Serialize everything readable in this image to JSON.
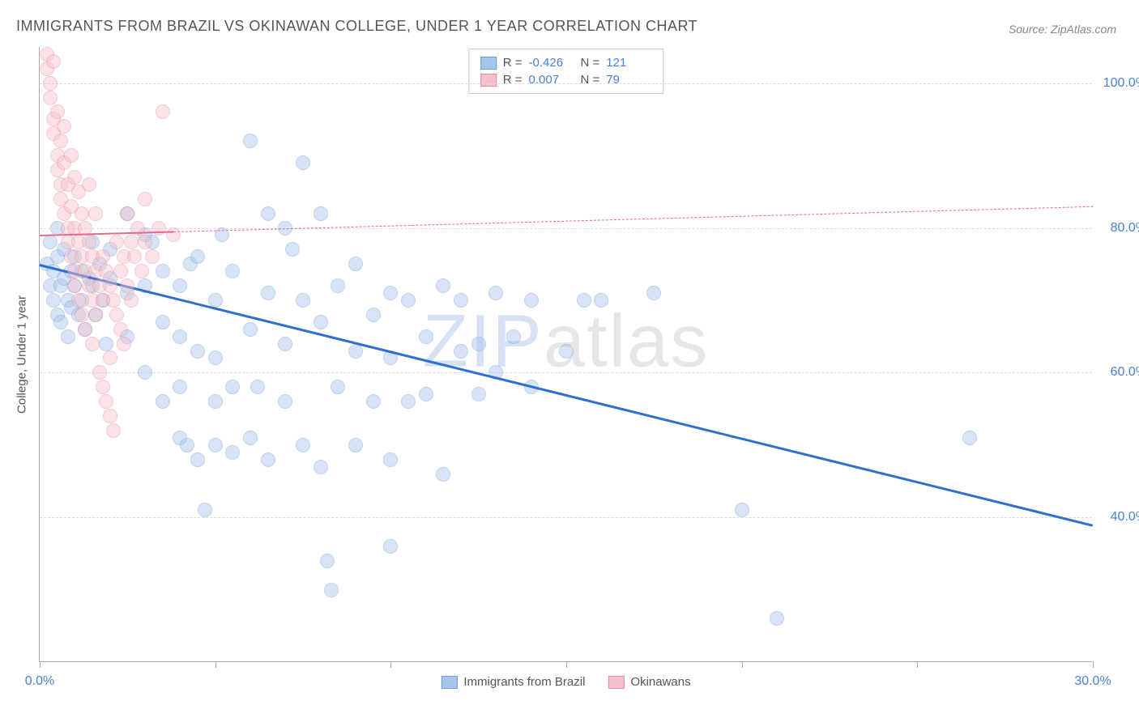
{
  "title": "IMMIGRANTS FROM BRAZIL VS OKINAWAN COLLEGE, UNDER 1 YEAR CORRELATION CHART",
  "source_label": "Source: ",
  "source_name": "ZipAtlas.com",
  "y_axis_label": "College, Under 1 year",
  "watermark": {
    "part1": "ZIP",
    "part2": "atlas"
  },
  "chart": {
    "type": "scatter",
    "background_color": "#ffffff",
    "grid_color": "#dcdcdc",
    "axis_color": "#aaaaaa",
    "xlim": [
      0,
      30
    ],
    "ylim": [
      20,
      105
    ],
    "x_ticks": [
      0,
      5,
      10,
      15,
      20,
      25,
      30
    ],
    "x_tick_labels": {
      "0": "0.0%",
      "30": "30.0%"
    },
    "y_ticks": [
      40,
      60,
      80,
      100
    ],
    "y_tick_labels": {
      "40": "40.0%",
      "60": "60.0%",
      "80": "80.0%",
      "100": "100.0%"
    },
    "marker_radius": 9,
    "marker_opacity": 0.45,
    "label_fontsize": 16,
    "title_fontsize": 18,
    "series": [
      {
        "name": "Immigrants from Brazil",
        "color_fill": "#a8c5eb",
        "color_stroke": "#6d9bd8",
        "r_value": "-0.426",
        "n_value": "121",
        "regression": {
          "x1": 0,
          "y1": 75,
          "x2": 30,
          "y2": 39,
          "color": "#2e6fd0",
          "width": 2.5,
          "dashed": false
        },
        "points": [
          [
            0.2,
            75
          ],
          [
            0.3,
            72
          ],
          [
            0.3,
            78
          ],
          [
            0.4,
            70
          ],
          [
            0.4,
            74
          ],
          [
            0.5,
            68
          ],
          [
            0.5,
            76
          ],
          [
            0.5,
            80
          ],
          [
            0.6,
            72
          ],
          [
            0.6,
            67
          ],
          [
            0.7,
            73
          ],
          [
            0.7,
            77
          ],
          [
            0.8,
            70
          ],
          [
            0.8,
            65
          ],
          [
            0.9,
            74
          ],
          [
            0.9,
            69
          ],
          [
            1.0,
            76
          ],
          [
            1.0,
            72
          ],
          [
            1.1,
            68
          ],
          [
            1.2,
            74
          ],
          [
            1.2,
            70
          ],
          [
            1.3,
            66
          ],
          [
            1.4,
            73
          ],
          [
            1.5,
            78
          ],
          [
            1.5,
            72
          ],
          [
            1.6,
            68
          ],
          [
            1.7,
            75
          ],
          [
            1.8,
            70
          ],
          [
            1.9,
            64
          ],
          [
            2.0,
            73
          ],
          [
            2.0,
            77
          ],
          [
            2.5,
            82
          ],
          [
            2.5,
            71
          ],
          [
            2.5,
            65
          ],
          [
            3.0,
            79
          ],
          [
            3.0,
            72
          ],
          [
            3.0,
            60
          ],
          [
            3.2,
            78
          ],
          [
            3.5,
            67
          ],
          [
            3.5,
            74
          ],
          [
            3.5,
            56
          ],
          [
            4.0,
            72
          ],
          [
            4.0,
            65
          ],
          [
            4.0,
            58
          ],
          [
            4.0,
            51
          ],
          [
            4.2,
            50
          ],
          [
            4.3,
            75
          ],
          [
            4.5,
            76
          ],
          [
            4.5,
            63
          ],
          [
            4.5,
            48
          ],
          [
            4.7,
            41
          ],
          [
            5.0,
            70
          ],
          [
            5.0,
            50
          ],
          [
            5.0,
            56
          ],
          [
            5.0,
            62
          ],
          [
            5.2,
            79
          ],
          [
            5.5,
            74
          ],
          [
            5.5,
            58
          ],
          [
            5.5,
            49
          ],
          [
            6.0,
            92
          ],
          [
            6.0,
            66
          ],
          [
            6.0,
            51
          ],
          [
            6.2,
            58
          ],
          [
            6.5,
            82
          ],
          [
            6.5,
            71
          ],
          [
            6.5,
            48
          ],
          [
            7.0,
            80
          ],
          [
            7.0,
            64
          ],
          [
            7.0,
            56
          ],
          [
            7.2,
            77
          ],
          [
            7.5,
            89
          ],
          [
            7.5,
            70
          ],
          [
            7.5,
            50
          ],
          [
            8.0,
            82
          ],
          [
            8.0,
            67
          ],
          [
            8.0,
            47
          ],
          [
            8.2,
            34
          ],
          [
            8.3,
            30
          ],
          [
            8.5,
            72
          ],
          [
            8.5,
            58
          ],
          [
            9.0,
            75
          ],
          [
            9.0,
            63
          ],
          [
            9.0,
            50
          ],
          [
            9.5,
            68
          ],
          [
            9.5,
            56
          ],
          [
            10.0,
            71
          ],
          [
            10.0,
            62
          ],
          [
            10.0,
            48
          ],
          [
            10.0,
            36
          ],
          [
            10.5,
            70
          ],
          [
            10.5,
            56
          ],
          [
            11.0,
            65
          ],
          [
            11.0,
            57
          ],
          [
            11.5,
            72
          ],
          [
            11.5,
            46
          ],
          [
            12.0,
            63
          ],
          [
            12.0,
            70
          ],
          [
            12.5,
            57
          ],
          [
            12.5,
            64
          ],
          [
            13.0,
            60
          ],
          [
            13.0,
            71
          ],
          [
            13.5,
            65
          ],
          [
            14.0,
            58
          ],
          [
            14.0,
            70
          ],
          [
            15.0,
            63
          ],
          [
            15.5,
            70
          ],
          [
            16.0,
            70
          ],
          [
            17.5,
            71
          ],
          [
            20.0,
            41
          ],
          [
            21.0,
            26
          ],
          [
            26.5,
            51
          ]
        ]
      },
      {
        "name": "Okinawans",
        "color_fill": "#f5bfcb",
        "color_stroke": "#e88aa0",
        "r_value": "0.007",
        "n_value": "79",
        "regression": {
          "x1": 0,
          "y1": 79,
          "x2": 30,
          "y2": 83,
          "color": "#e66b88",
          "width": 1.5,
          "dashed": true,
          "solid_until_x": 3.8
        },
        "points": [
          [
            0.2,
            104
          ],
          [
            0.2,
            102
          ],
          [
            0.3,
            100
          ],
          [
            0.3,
            98
          ],
          [
            0.4,
            95
          ],
          [
            0.4,
            93
          ],
          [
            0.4,
            103
          ],
          [
            0.5,
            90
          ],
          [
            0.5,
            88
          ],
          [
            0.5,
            96
          ],
          [
            0.6,
            86
          ],
          [
            0.6,
            92
          ],
          [
            0.6,
            84
          ],
          [
            0.7,
            82
          ],
          [
            0.7,
            89
          ],
          [
            0.7,
            94
          ],
          [
            0.8,
            80
          ],
          [
            0.8,
            86
          ],
          [
            0.8,
            78
          ],
          [
            0.9,
            76
          ],
          [
            0.9,
            83
          ],
          [
            0.9,
            90
          ],
          [
            1.0,
            74
          ],
          [
            1.0,
            80
          ],
          [
            1.0,
            87
          ],
          [
            1.0,
            72
          ],
          [
            1.1,
            78
          ],
          [
            1.1,
            85
          ],
          [
            1.1,
            70
          ],
          [
            1.2,
            76
          ],
          [
            1.2,
            82
          ],
          [
            1.2,
            68
          ],
          [
            1.3,
            74
          ],
          [
            1.3,
            80
          ],
          [
            1.3,
            66
          ],
          [
            1.4,
            72
          ],
          [
            1.4,
            78
          ],
          [
            1.4,
            86
          ],
          [
            1.5,
            70
          ],
          [
            1.5,
            76
          ],
          [
            1.5,
            64
          ],
          [
            1.6,
            74
          ],
          [
            1.6,
            68
          ],
          [
            1.6,
            82
          ],
          [
            1.7,
            72
          ],
          [
            1.7,
            60
          ],
          [
            1.8,
            76
          ],
          [
            1.8,
            70
          ],
          [
            1.8,
            58
          ],
          [
            1.9,
            74
          ],
          [
            1.9,
            56
          ],
          [
            2.0,
            72
          ],
          [
            2.0,
            62
          ],
          [
            2.0,
            54
          ],
          [
            2.1,
            70
          ],
          [
            2.1,
            52
          ],
          [
            2.2,
            68
          ],
          [
            2.2,
            78
          ],
          [
            2.3,
            66
          ],
          [
            2.3,
            74
          ],
          [
            2.4,
            76
          ],
          [
            2.4,
            64
          ],
          [
            2.5,
            72
          ],
          [
            2.5,
            82
          ],
          [
            2.6,
            70
          ],
          [
            2.6,
            78
          ],
          [
            2.7,
            76
          ],
          [
            2.8,
            80
          ],
          [
            2.9,
            74
          ],
          [
            3.0,
            78
          ],
          [
            3.0,
            84
          ],
          [
            3.2,
            76
          ],
          [
            3.4,
            80
          ],
          [
            3.5,
            96
          ],
          [
            3.8,
            79
          ]
        ]
      }
    ]
  },
  "bottom_legend": [
    {
      "label": "Immigrants from Brazil",
      "fill": "#a8c5eb",
      "stroke": "#6d9bd8"
    },
    {
      "label": "Okinawans",
      "fill": "#f5bfcb",
      "stroke": "#e88aa0"
    }
  ]
}
